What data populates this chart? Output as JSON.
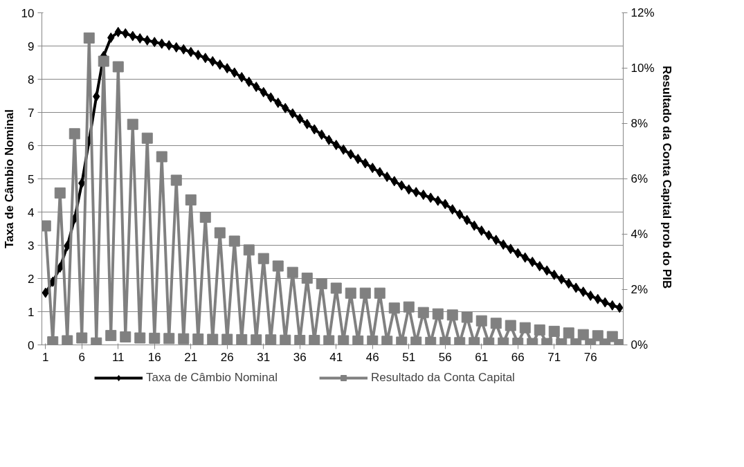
{
  "chart_data": {
    "type": "line",
    "ylabel": "Taxa de Câmbio Nominal",
    "y2label": "Resultado da Conta Capital  prob do PIB",
    "x": [
      1,
      2,
      3,
      4,
      5,
      6,
      7,
      8,
      9,
      10,
      11,
      12,
      13,
      14,
      15,
      16,
      17,
      18,
      19,
      20,
      21,
      22,
      23,
      24,
      25,
      26,
      27,
      28,
      29,
      30,
      31,
      32,
      33,
      34,
      35,
      36,
      37,
      38,
      39,
      40,
      41,
      42,
      43,
      44,
      45,
      46,
      47,
      48,
      49,
      50,
      51,
      52,
      53,
      54,
      55,
      56,
      57,
      58,
      59,
      60,
      61,
      62,
      63,
      64,
      65,
      66,
      67,
      68,
      69,
      70,
      71,
      72,
      73,
      74,
      75,
      76,
      77,
      78,
      79,
      80
    ],
    "xlim": [
      0.5,
      80.5
    ],
    "xticks": [
      1,
      6,
      11,
      16,
      21,
      26,
      31,
      36,
      41,
      46,
      51,
      56,
      61,
      66,
      71,
      76
    ],
    "ylim": [
      0,
      10
    ],
    "yticks": [
      0,
      1,
      2,
      3,
      4,
      5,
      6,
      7,
      8,
      9,
      10
    ],
    "y2lim": [
      0,
      12
    ],
    "y2ticks": [
      {
        "value": 0,
        "label": "0%"
      },
      {
        "value": 2,
        "label": "2%"
      },
      {
        "value": 4,
        "label": "4%"
      },
      {
        "value": 6,
        "label": "6%"
      },
      {
        "value": 8,
        "label": "8%"
      },
      {
        "value": 10,
        "label": "10%"
      },
      {
        "value": 12,
        "label": "12%"
      }
    ],
    "grid": "y",
    "legend": "bottom",
    "series": [
      {
        "name": "Taxa de Câmbio Nominal",
        "color": "#000000",
        "marker": "diamond",
        "values": [
          1.57,
          1.9,
          2.33,
          2.98,
          3.8,
          4.87,
          6.15,
          7.48,
          8.7,
          9.25,
          9.42,
          9.38,
          9.3,
          9.23,
          9.17,
          9.12,
          9.07,
          9.02,
          8.96,
          8.9,
          8.82,
          8.73,
          8.64,
          8.54,
          8.44,
          8.33,
          8.2,
          8.06,
          7.92,
          7.77,
          7.61,
          7.45,
          7.29,
          7.13,
          6.97,
          6.81,
          6.65,
          6.49,
          6.33,
          6.17,
          6.02,
          5.88,
          5.74,
          5.6,
          5.47,
          5.33,
          5.2,
          5.06,
          4.93,
          4.8,
          4.68,
          4.6,
          4.52,
          4.43,
          4.34,
          4.24,
          4.08,
          3.93,
          3.76,
          3.59,
          3.44,
          3.3,
          3.16,
          3.02,
          2.89,
          2.76,
          2.63,
          2.5,
          2.37,
          2.24,
          2.11,
          1.98,
          1.85,
          1.72,
          1.6,
          1.48,
          1.38,
          1.28,
          1.19,
          1.12
        ]
      },
      {
        "name": "Resultado da Conta Capital",
        "color": "#808080",
        "marker": "square",
        "axis": "y2",
        "values": [
          4.3,
          0.11,
          5.49,
          0.15,
          7.63,
          0.25,
          11.09,
          0.07,
          10.25,
          0.34,
          10.05,
          0.29,
          7.97,
          0.25,
          7.47,
          0.24,
          6.8,
          0.23,
          5.95,
          0.22,
          5.24,
          0.21,
          4.61,
          0.2,
          4.05,
          0.2,
          3.75,
          0.19,
          3.43,
          0.18,
          3.12,
          0.18,
          2.85,
          0.17,
          2.62,
          0.16,
          2.41,
          0.16,
          2.21,
          0.15,
          2.05,
          0.15,
          1.87,
          0.14,
          1.87,
          0.14,
          1.87,
          0.13,
          1.33,
          0.1,
          1.37,
          0.1,
          1.17,
          0.09,
          1.12,
          0.09,
          1.08,
          0.08,
          1.0,
          0.08,
          0.87,
          0.07,
          0.78,
          0.07,
          0.7,
          0.06,
          0.62,
          0.05,
          0.54,
          0.05,
          0.49,
          0.04,
          0.43,
          0.04,
          0.37,
          0.03,
          0.33,
          0.03,
          0.3,
          0.01
        ]
      }
    ]
  }
}
